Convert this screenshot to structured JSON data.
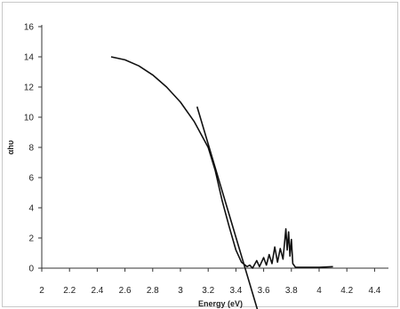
{
  "chart_data": {
    "type": "line",
    "xlabel": "Energy (eV)",
    "ylabel": "αhυ",
    "xlim": [
      2,
      4.5
    ],
    "ylim": [
      0,
      16
    ],
    "x_ticks": [
      2,
      2.2,
      2.4,
      2.6,
      2.8,
      3,
      3.2,
      3.4,
      3.6,
      3.8,
      4,
      4.2,
      4.4
    ],
    "x_tick_labels": [
      "2",
      "2.2",
      "2.4",
      "2.6",
      "2.8",
      "3",
      "3.2",
      "3.4",
      "3.6",
      "3.8",
      "4",
      "4.2",
      "4.4"
    ],
    "y_ticks": [
      0,
      2,
      4,
      6,
      8,
      10,
      12,
      14,
      16
    ],
    "y_tick_labels": [
      "0",
      "2",
      "4",
      "6",
      "8",
      "10",
      "12",
      "14",
      "16"
    ],
    "grid": false,
    "legend": "none",
    "series": [
      {
        "points": [
          [
            2.5,
            14.0
          ],
          [
            2.6,
            13.8
          ],
          [
            2.7,
            13.4
          ],
          [
            2.8,
            12.8
          ],
          [
            2.9,
            12.0
          ],
          [
            3.0,
            11.0
          ],
          [
            3.1,
            9.7
          ],
          [
            3.2,
            8.0
          ],
          [
            3.25,
            6.5
          ],
          [
            3.3,
            4.5
          ],
          [
            3.35,
            2.8
          ],
          [
            3.4,
            1.2
          ],
          [
            3.44,
            0.4
          ],
          [
            3.48,
            0.1
          ],
          [
            3.5,
            0.2
          ],
          [
            3.52,
            0.0
          ],
          [
            3.55,
            0.5
          ],
          [
            3.57,
            0.1
          ],
          [
            3.6,
            0.7
          ],
          [
            3.62,
            0.2
          ],
          [
            3.64,
            0.9
          ],
          [
            3.66,
            0.3
          ],
          [
            3.68,
            1.4
          ],
          [
            3.7,
            0.4
          ],
          [
            3.72,
            1.3
          ],
          [
            3.74,
            0.6
          ],
          [
            3.76,
            2.6
          ],
          [
            3.77,
            1.2
          ],
          [
            3.78,
            2.4
          ],
          [
            3.79,
            0.8
          ],
          [
            3.8,
            1.9
          ],
          [
            3.81,
            0.3
          ],
          [
            3.83,
            0.05
          ],
          [
            3.9,
            0.05
          ],
          [
            4.0,
            0.05
          ],
          [
            4.1,
            0.1
          ]
        ],
        "color": "#111111"
      },
      {
        "points": [
          [
            3.12,
            10.7
          ],
          [
            3.57,
            -3.2
          ]
        ],
        "color": "#111111"
      }
    ]
  }
}
